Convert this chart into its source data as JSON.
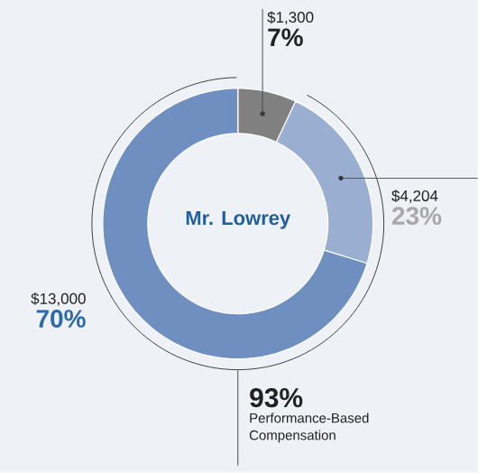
{
  "chart_data": {
    "type": "donut",
    "title": "Mr. Lowrey",
    "categories": [
      null,
      null,
      null
    ],
    "values": [
      1300,
      4204,
      13000
    ],
    "colors": [
      "#808080",
      "#9aaed2",
      "#6f8fc0"
    ],
    "value_labels": [
      "$1,300",
      "$4,204",
      "$13,000"
    ],
    "annotations": [
      "7%",
      "23%",
      "70%",
      "93%",
      "Performance-Based Compensation"
    ]
  }
}
